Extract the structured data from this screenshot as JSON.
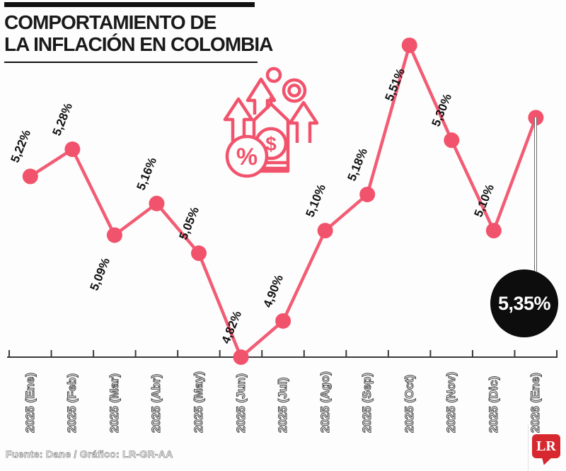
{
  "header": {
    "title_line1": "COMPORTAMIENTO DE",
    "title_line2": "LA INFLACIÓN EN COLOMBIA"
  },
  "chart_data": {
    "type": "line",
    "title": "Comportamiento de la inflación en Colombia",
    "categories": [
      "2025 (Ene)",
      "2025 (Feb)",
      "2025 (Mar)",
      "2025 (Abr)",
      "2025 (May)",
      "2025 (Jun)",
      "2025 (Jul)",
      "2025 (Ago)",
      "2025 (Sep)",
      "2025 (Oct)",
      "2025 (Nov)",
      "2025 (Dic)",
      "2026 (Ene)"
    ],
    "values": [
      5.22,
      5.28,
      5.09,
      5.16,
      5.05,
      4.82,
      4.9,
      5.1,
      5.18,
      5.51,
      5.3,
      5.1,
      5.35
    ],
    "point_labels": [
      "5,22%",
      "5,28%",
      "5,09%",
      "5,16%",
      "5,05%",
      "4,82%",
      "4,90%",
      "5,10%",
      "5,18%",
      "5,51%",
      "5,30%",
      "5,10%",
      ""
    ],
    "label_side": [
      "above",
      "above",
      "below",
      "above",
      "above",
      "above",
      "above",
      "above",
      "above",
      "below",
      "above",
      "above",
      "callout"
    ],
    "callout": {
      "value": "5,35%",
      "index": 12
    },
    "xlabel": "",
    "ylabel": "",
    "ylim": [
      4.82,
      5.51
    ],
    "grid": false,
    "legend": "none",
    "line_color": "#f25c74",
    "marker_color": "#f2536c",
    "axis_color": "#3a3a3a",
    "callout_bg": "#0d0d0d",
    "callout_text_color": "#ffffff"
  },
  "icon": {
    "name": "inflation-icon",
    "color": "#f2536c"
  },
  "footer": {
    "source": "Fuente: Dane / Gráfico: LR-GR-AA",
    "logo_text": "LR",
    "logo_color": "#d7282f"
  }
}
